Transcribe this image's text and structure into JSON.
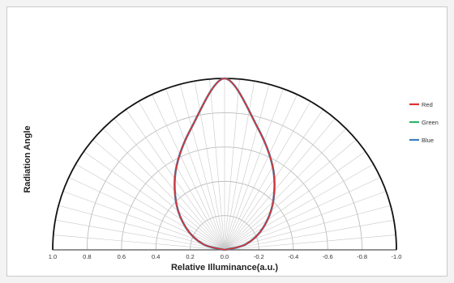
{
  "chart_data": {
    "type": "polar",
    "xlabel": "Relative Illuminance(a.u.)",
    "ylabel": "Radiation Angle",
    "x_ticks": [
      "1.0",
      "0.8",
      "0.6",
      "0.4",
      "0.2",
      "0.0",
      "-0.2",
      "-0.4",
      "-0.6",
      "-0.8",
      "-1.0"
    ],
    "r_range": [
      0,
      1.0
    ],
    "angle_range_deg": [
      -90,
      90
    ],
    "grid": true,
    "legend_position": "right",
    "series": [
      {
        "name": "Red",
        "color": "#e03030",
        "points": [
          [
            -90,
            0.0
          ],
          [
            -75,
            0.13
          ],
          [
            -60,
            0.26
          ],
          [
            -45,
            0.4
          ],
          [
            -30,
            0.56
          ],
          [
            -15,
            0.74
          ],
          [
            0,
            1.0
          ],
          [
            15,
            0.74
          ],
          [
            30,
            0.56
          ],
          [
            45,
            0.4
          ],
          [
            60,
            0.26
          ],
          [
            75,
            0.13
          ],
          [
            90,
            0.0
          ]
        ]
      },
      {
        "name": "Green",
        "color": "#2fb36a",
        "points": [
          [
            -90,
            0.0
          ],
          [
            -75,
            0.13
          ],
          [
            -60,
            0.26
          ],
          [
            -45,
            0.4
          ],
          [
            -30,
            0.56
          ],
          [
            -15,
            0.74
          ],
          [
            0,
            1.0
          ],
          [
            15,
            0.74
          ],
          [
            30,
            0.56
          ],
          [
            45,
            0.4
          ],
          [
            60,
            0.26
          ],
          [
            75,
            0.13
          ],
          [
            90,
            0.0
          ]
        ]
      },
      {
        "name": "Blue",
        "color": "#3a7fc0",
        "points": [
          [
            -90,
            0.0
          ],
          [
            -75,
            0.13
          ],
          [
            -60,
            0.26
          ],
          [
            -45,
            0.4
          ],
          [
            -30,
            0.56
          ],
          [
            -15,
            0.74
          ],
          [
            0,
            1.0
          ],
          [
            15,
            0.74
          ],
          [
            30,
            0.56
          ],
          [
            45,
            0.4
          ],
          [
            60,
            0.26
          ],
          [
            75,
            0.13
          ],
          [
            90,
            0.0
          ]
        ]
      }
    ]
  }
}
